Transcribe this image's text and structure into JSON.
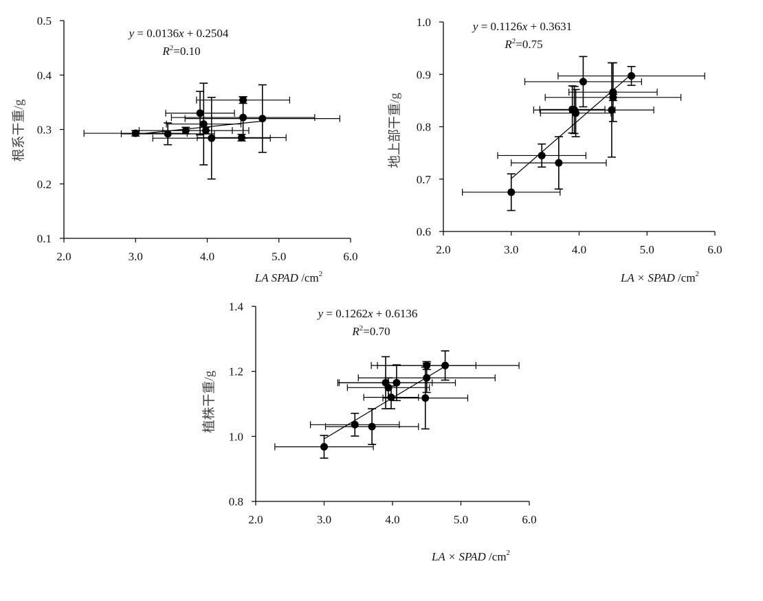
{
  "chart_data": [
    {
      "type": "scatter",
      "panel": "root",
      "ylabel": "根系干重/g",
      "xlabel": {
        "text": "LA   SPAD",
        "unit": " /cm",
        "sup": "2"
      },
      "equation": {
        "y": "y",
        "body": " = 0.0136",
        "x": "x",
        "rest": " + 0.2504"
      },
      "r2": {
        "r": "R",
        "sup": "2",
        "val": "=0.10"
      },
      "xlim": [
        2.0,
        6.0
      ],
      "ylim": [
        0.1,
        0.5
      ],
      "xticks": [
        "2.0",
        "3.0",
        "4.0",
        "5.0",
        "6.0"
      ],
      "yticks": [
        "0.1",
        "0.2",
        "0.3",
        "0.4",
        "0.5"
      ],
      "trend": {
        "slope": 0.0136,
        "intercept": 0.2504,
        "x_from": 3.0,
        "x_to": 4.77
      },
      "points": [
        {
          "x": 3.0,
          "y": 0.293,
          "xerr": 0.72,
          "yerr": 0.005
        },
        {
          "x": 3.45,
          "y": 0.292,
          "xerr": 0.65,
          "yerr": 0.02
        },
        {
          "x": 3.7,
          "y": 0.298,
          "xerr": 0.65,
          "yerr": 0.006
        },
        {
          "x": 3.9,
          "y": 0.33,
          "xerr": 0.48,
          "yerr": 0.04
        },
        {
          "x": 3.95,
          "y": 0.31,
          "xerr": 0.52,
          "yerr": 0.075
        },
        {
          "x": 3.98,
          "y": 0.298,
          "xerr": 0.6,
          "yerr": 0.006
        },
        {
          "x": 4.06,
          "y": 0.284,
          "xerr": 0.82,
          "yerr": 0.075
        },
        {
          "x": 4.48,
          "y": 0.285,
          "xerr": 0.62,
          "yerr": 0.006
        },
        {
          "x": 4.5,
          "y": 0.354,
          "xerr": 0.65,
          "yerr": 0.006
        },
        {
          "x": 4.5,
          "y": 0.322,
          "xerr": 1.0,
          "yerr": 0.038
        },
        {
          "x": 4.77,
          "y": 0.32,
          "xerr": 1.08,
          "yerr": 0.062
        }
      ]
    },
    {
      "type": "scatter",
      "panel": "shoot",
      "ylabel": "地上部干重/g",
      "xlabel": {
        "text": "LA × SPAD",
        "unit": " /cm",
        "sup": "2"
      },
      "equation": {
        "y": "y",
        "body": " = 0.1126",
        "x": "x",
        "rest": " + 0.3631"
      },
      "r2": {
        "r": "R",
        "sup": "2",
        "val": "=0.75"
      },
      "xlim": [
        2.0,
        6.0
      ],
      "ylim": [
        0.6,
        1.0
      ],
      "xticks": [
        "2.0",
        "3.0",
        "4.0",
        "5.0",
        "6.0"
      ],
      "yticks": [
        "0.6",
        "0.7",
        "0.8",
        "0.9",
        "1.0"
      ],
      "trend": {
        "slope": 0.1126,
        "intercept": 0.3631,
        "x_from": 3.0,
        "x_to": 4.77
      },
      "points": [
        {
          "x": 3.0,
          "y": 0.675,
          "xerr": 0.72,
          "yerr": 0.035
        },
        {
          "x": 3.45,
          "y": 0.745,
          "xerr": 0.65,
          "yerr": 0.022
        },
        {
          "x": 3.7,
          "y": 0.731,
          "xerr": 0.7,
          "yerr": 0.05
        },
        {
          "x": 3.9,
          "y": 0.833,
          "xerr": 0.48,
          "yerr": 0.045
        },
        {
          "x": 3.95,
          "y": 0.826,
          "xerr": 0.52,
          "yerr": 0.045
        },
        {
          "x": 3.93,
          "y": 0.832,
          "xerr": 0.6,
          "yerr": 0.045
        },
        {
          "x": 4.06,
          "y": 0.886,
          "xerr": 0.86,
          "yerr": 0.048
        },
        {
          "x": 4.48,
          "y": 0.832,
          "xerr": 0.62,
          "yerr": 0.09
        },
        {
          "x": 4.5,
          "y": 0.866,
          "xerr": 0.65,
          "yerr": 0.056
        },
        {
          "x": 4.5,
          "y": 0.856,
          "xerr": 1.0,
          "yerr": 0.006
        },
        {
          "x": 4.77,
          "y": 0.897,
          "xerr": 1.08,
          "yerr": 0.018
        }
      ]
    },
    {
      "type": "scatter",
      "panel": "plant",
      "ylabel": "植株干重/g",
      "xlabel": {
        "text": "LA × SPAD",
        "unit": " /cm",
        "sup": "2"
      },
      "equation": {
        "y": "y",
        "body": " = 0.1262",
        "x": "x",
        "rest": " + 0.6136"
      },
      "r2": {
        "r": "R",
        "sup": "2",
        "val": "=0.70"
      },
      "xlim": [
        2.0,
        6.0
      ],
      "ylim": [
        0.8,
        1.4
      ],
      "xticks": [
        "2.0",
        "3.0",
        "4.0",
        "5.0",
        "6.0"
      ],
      "yticks": [
        "0.8",
        "1.0",
        "1.2",
        "1.4"
      ],
      "ytick_values": [
        0.8,
        1.0,
        1.2,
        1.4
      ],
      "trend": {
        "slope": 0.1262,
        "intercept": 0.6136,
        "x_from": 3.0,
        "x_to": 4.77
      },
      "points": [
        {
          "x": 3.0,
          "y": 0.968,
          "xerr": 0.72,
          "yerr": 0.035
        },
        {
          "x": 3.45,
          "y": 1.036,
          "xerr": 0.65,
          "yerr": 0.035
        },
        {
          "x": 3.7,
          "y": 1.03,
          "xerr": 0.68,
          "yerr": 0.055
        },
        {
          "x": 3.9,
          "y": 1.165,
          "xerr": 0.68,
          "yerr": 0.08
        },
        {
          "x": 3.94,
          "y": 1.15,
          "xerr": 0.6,
          "yerr": 0.03
        },
        {
          "x": 3.98,
          "y": 1.12,
          "xerr": 0.4,
          "yerr": 0.035
        },
        {
          "x": 4.06,
          "y": 1.165,
          "xerr": 0.86,
          "yerr": 0.055
        },
        {
          "x": 4.48,
          "y": 1.118,
          "xerr": 0.62,
          "yerr": 0.095
        },
        {
          "x": 4.5,
          "y": 1.18,
          "xerr": 1.0,
          "yerr": 0.045
        },
        {
          "x": 4.5,
          "y": 1.218,
          "xerr": 0.72,
          "yerr": 0.012
        },
        {
          "x": 4.77,
          "y": 1.218,
          "xerr": 1.08,
          "yerr": 0.045
        }
      ]
    }
  ]
}
